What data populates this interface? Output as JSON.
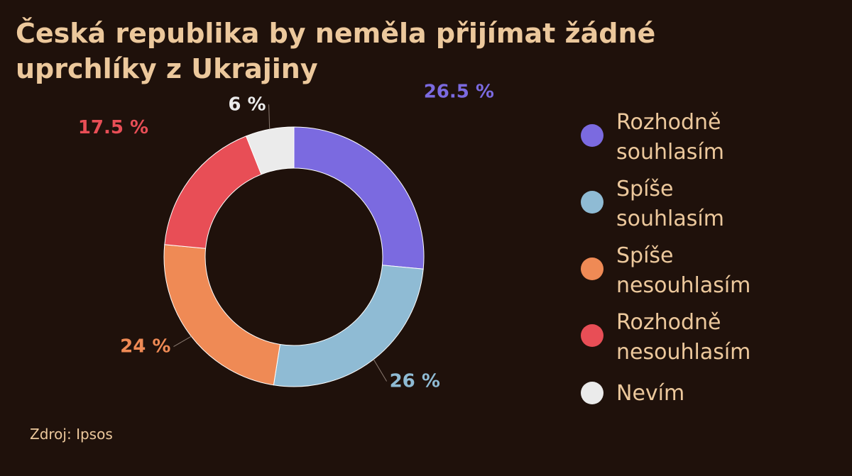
{
  "title_lines": [
    "Česká republika by neměla přijímat žádné",
    "uprchlíky z Ukrajiny"
  ],
  "source": "Zdroj: Ipsos",
  "chart_data": {
    "type": "pie",
    "variant": "donut",
    "title": "Česká republika by neměla přijímat žádné uprchlíky z Ukrajiny",
    "unit": "%",
    "categories": [
      "Rozhodně souhlasím",
      "Spíše souhlasím",
      "Spíše nesouhlasím",
      "Rozhodně nesouhlasím",
      "Nevím"
    ],
    "values": [
      26.5,
      26,
      24,
      17.5,
      6
    ],
    "value_labels": [
      "26.5 %",
      "26 %",
      "24 %",
      "17.5 %",
      "6 %"
    ],
    "colors": [
      "#7b6ae0",
      "#8fbbd4",
      "#ef8a55",
      "#e84e56",
      "#ebebeb"
    ],
    "legend_position": "right"
  },
  "legend": [
    {
      "lines": [
        "Rozhodně",
        "souhlasím"
      ],
      "color": "#7b6ae0"
    },
    {
      "lines": [
        "Spíše",
        "souhlasím"
      ],
      "color": "#8fbbd4"
    },
    {
      "lines": [
        "Spíše",
        "nesouhlasím"
      ],
      "color": "#ef8a55"
    },
    {
      "lines": [
        "Rozhodně",
        "nesouhlasím"
      ],
      "color": "#e84e56"
    },
    {
      "lines": [
        "Nevím"
      ],
      "color": "#ebebeb"
    }
  ]
}
